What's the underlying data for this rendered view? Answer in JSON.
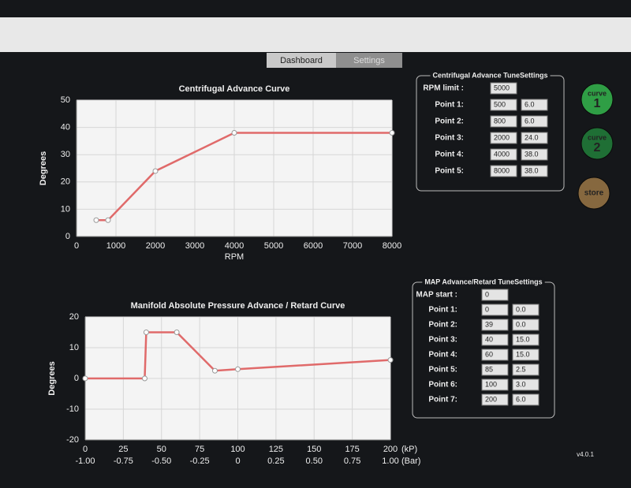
{
  "tabs": [
    "Dashboard",
    "Settings"
  ],
  "chart_data": [
    {
      "type": "line",
      "title": "Centrifugal Advance Curve",
      "xlabel": "RPM",
      "ylabel": "Degrees",
      "x": [
        500,
        800,
        2000,
        4000,
        8000
      ],
      "values": [
        6,
        6,
        24,
        38,
        38
      ],
      "color": "#e06a6a",
      "xlim": [
        0,
        8000
      ],
      "xticks": [
        0,
        1000,
        2000,
        3000,
        4000,
        5000,
        6000,
        7000,
        8000
      ],
      "ylim": [
        0,
        50
      ],
      "yticks": [
        0,
        10,
        20,
        30,
        40,
        50
      ],
      "grid": true
    },
    {
      "type": "line",
      "title": "Manifold Absolute Pressure Advance / Retard Curve",
      "xlabel": "(kP)",
      "ylabel": "Degrees",
      "x": [
        0,
        39,
        40,
        60,
        85,
        100,
        200
      ],
      "values": [
        0,
        0,
        15,
        15,
        2.5,
        3,
        6
      ],
      "color": "#e06a6a",
      "xlim": [
        0,
        200
      ],
      "xticks": [
        0,
        25,
        50,
        75,
        100,
        125,
        150,
        175,
        200
      ],
      "x2label": "(Bar)",
      "x2lim": [
        -1,
        1
      ],
      "x2ticks": [
        {
          "value": -1,
          "label": "-1.00"
        },
        {
          "value": -0.75,
          "label": "-0.75"
        },
        {
          "value": -0.5,
          "label": "-0.50"
        },
        {
          "value": -0.25,
          "label": "-0.25"
        },
        0,
        {
          "value": 0.25,
          "label": "0.25"
        },
        {
          "value": 0.5,
          "label": "0.50"
        },
        {
          "value": 0.75,
          "label": "0.75"
        },
        {
          "value": 1,
          "label": "1.00"
        }
      ],
      "ylim": [
        -20,
        20
      ],
      "yticks": [
        -20,
        -10,
        0,
        10,
        20
      ],
      "grid": true
    }
  ],
  "panels": [
    {
      "title": "Centrifugal Advance TuneSettings",
      "rows": [
        {
          "label": "RPM limit :",
          "fields": [
            "5000"
          ]
        },
        {
          "label": "Point 1:",
          "fields": [
            "500",
            "6.0"
          ]
        },
        {
          "label": "Point 2:",
          "fields": [
            "800",
            "6.0"
          ]
        },
        {
          "label": "Point 3:",
          "fields": [
            "2000",
            "24.0"
          ]
        },
        {
          "label": "Point 4:",
          "fields": [
            "4000",
            "38.0"
          ]
        },
        {
          "label": "Point 5:",
          "fields": [
            "8000",
            "38.0"
          ]
        }
      ]
    },
    {
      "title": "MAP Advance/Retard TuneSettings",
      "rows": [
        {
          "label": "MAP start :",
          "fields": [
            "0"
          ]
        },
        {
          "label": "Point 1:",
          "fields": [
            "0",
            "0.0"
          ]
        },
        {
          "label": "Point 2:",
          "fields": [
            "39",
            "0.0"
          ]
        },
        {
          "label": "Point 3:",
          "fields": [
            "40",
            "15.0"
          ]
        },
        {
          "label": "Point 4:",
          "fields": [
            "60",
            "15.0"
          ]
        },
        {
          "label": "Point 5:",
          "fields": [
            "85",
            "2.5"
          ]
        },
        {
          "label": "Point 6:",
          "fields": [
            "100",
            "3.0"
          ]
        },
        {
          "label": "Point 7:",
          "fields": [
            "200",
            "6.0"
          ]
        }
      ]
    }
  ],
  "buttons": [
    {
      "text": "curve",
      "badge": "1"
    },
    {
      "text": "curve",
      "badge": "2"
    },
    {
      "text": "store"
    }
  ],
  "version": "v4.0.1"
}
